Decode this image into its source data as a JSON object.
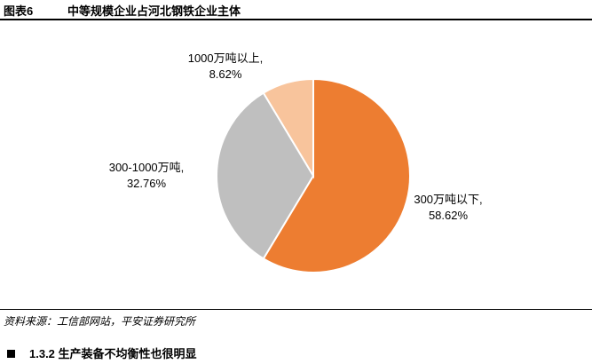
{
  "figure": {
    "label": "图表6",
    "title": "中等规模企业占河北钢铁企业主体"
  },
  "chart_data": {
    "type": "pie",
    "start_angle_deg": 0,
    "direction": "clockwise",
    "slices": [
      {
        "label_line1": "300万吨以下,",
        "label_line2": "58.62%",
        "value": 58.62,
        "color": "#ED7D31"
      },
      {
        "label_line1": "300-1000万吨,",
        "label_line2": "32.76%",
        "value": 32.76,
        "color": "#BFBFBF"
      },
      {
        "label_line1": "1000万吨以上,",
        "label_line2": "8.62%",
        "value": 8.62,
        "color": "#F8C49C"
      }
    ],
    "legend": "none"
  },
  "source": "资料来源：工信部网站，平安证券研究所",
  "section": {
    "heading": "1.3.2 生产装备不均衡性也很明显"
  }
}
